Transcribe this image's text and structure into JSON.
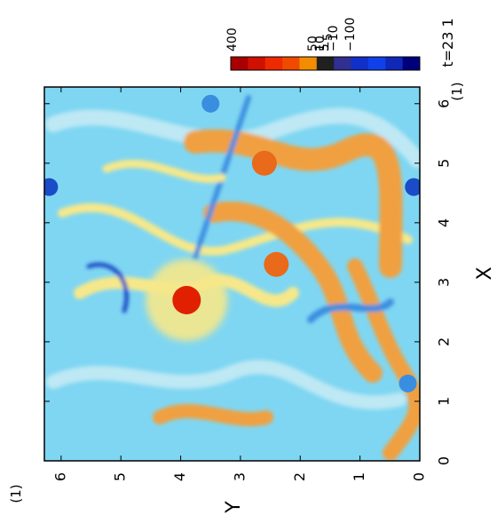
{
  "chart_data": {
    "type": "heatmap",
    "time_label": "t=23 1",
    "xlabel": "X",
    "ylabel": "Y",
    "x_unit": "(1)",
    "y_unit": "(1)",
    "xlim": [
      0,
      6.28
    ],
    "ylim": [
      0,
      6.28
    ],
    "x_ticks": [
      0,
      1,
      2,
      3,
      4,
      5,
      6
    ],
    "y_ticks": [
      0,
      1,
      2,
      3,
      4,
      5,
      6
    ],
    "colorbar": {
      "labels": [
        "400",
        "50",
        "10",
        "5",
        "−5",
        "−10",
        "−100"
      ],
      "levels": [
        400,
        50,
        10,
        5,
        -5,
        -10,
        -100
      ],
      "colors": [
        "#a80000",
        "#d01000",
        "#ee2a00",
        "#f04a00",
        "#f28c00",
        "#202020",
        "#303090",
        "#1030c8",
        "#1040e8",
        "#1028b8",
        "#00007a"
      ]
    },
    "palette": {
      "background": "#7fd6f2",
      "mid": "#bde8f4",
      "yellow": "#f6e88a",
      "orange": "#f0a040",
      "red_orange": "#e86a1a",
      "blue": "#3a8ee0",
      "dark_blue": "#1a4cc8",
      "red_core": "#e02000"
    },
    "vortices": [
      {
        "kind": "strong-positive",
        "x": 2.7,
        "y": 3.9,
        "color": "red_core"
      },
      {
        "kind": "positive",
        "x": 3.3,
        "y": 2.4,
        "color": "red_orange"
      },
      {
        "kind": "positive",
        "x": 5.0,
        "y": 2.6,
        "color": "red_orange"
      },
      {
        "kind": "negative",
        "x": 4.6,
        "y": 6.2,
        "color": "dark_blue"
      },
      {
        "kind": "negative",
        "x": 4.6,
        "y": 0.1,
        "color": "dark_blue"
      },
      {
        "kind": "negative",
        "x": 6.0,
        "y": 3.5,
        "color": "blue"
      },
      {
        "kind": "negative",
        "x": 1.3,
        "y": 0.2,
        "color": "blue"
      }
    ]
  }
}
